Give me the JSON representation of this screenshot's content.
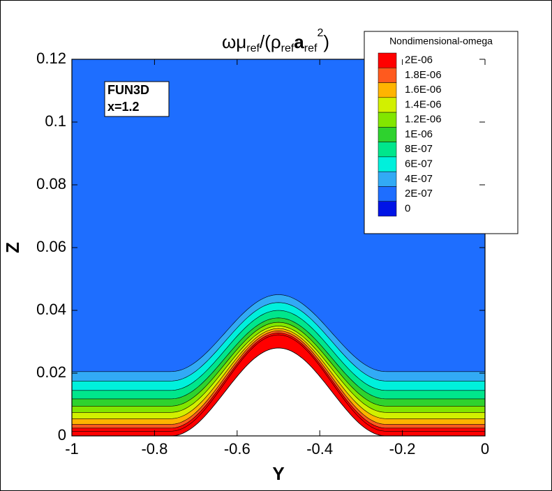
{
  "chart_data": {
    "type": "contour",
    "title": [
      "ωμ",
      "ref",
      "/(ρ",
      "ref",
      "a",
      "ref",
      "2",
      ")"
    ],
    "annotation": [
      "FUN3D",
      "x=1.2"
    ],
    "x_label": "Y",
    "y_label": "Z",
    "xlim": [
      -1,
      0
    ],
    "ylim": [
      0,
      0.12
    ],
    "xticks": [
      -1,
      -0.8,
      -0.6,
      -0.4,
      -0.2,
      0
    ],
    "yticks": [
      0,
      0.02,
      0.04,
      0.06,
      0.08,
      0.1,
      0.12
    ],
    "legend": {
      "title": "Nondimensional-omega",
      "levels": [
        {
          "value": 2e-06,
          "label": "2E-06"
        },
        {
          "value": 1.8e-06,
          "label": "1.8E-06"
        },
        {
          "value": 1.6e-06,
          "label": "1.6E-06"
        },
        {
          "value": 1.4e-06,
          "label": "1.4E-06"
        },
        {
          "value": 1.2e-06,
          "label": "1.2E-06"
        },
        {
          "value": 1e-06,
          "label": "1E-06"
        },
        {
          "value": 8e-07,
          "label": "8E-07"
        },
        {
          "value": 6e-07,
          "label": "6E-07"
        },
        {
          "value": 4e-07,
          "label": "4E-07"
        },
        {
          "value": 2e-07,
          "label": "2E-07"
        },
        0
      ],
      "colors": [
        "#ff0000",
        "#ff5a1e",
        "#ffb400",
        "#d2f000",
        "#82e600",
        "#2ed22e",
        "#00e68c",
        "#00f0dc",
        "#32aaf5",
        "#1e6eff",
        "#0014e6"
      ]
    }
  }
}
